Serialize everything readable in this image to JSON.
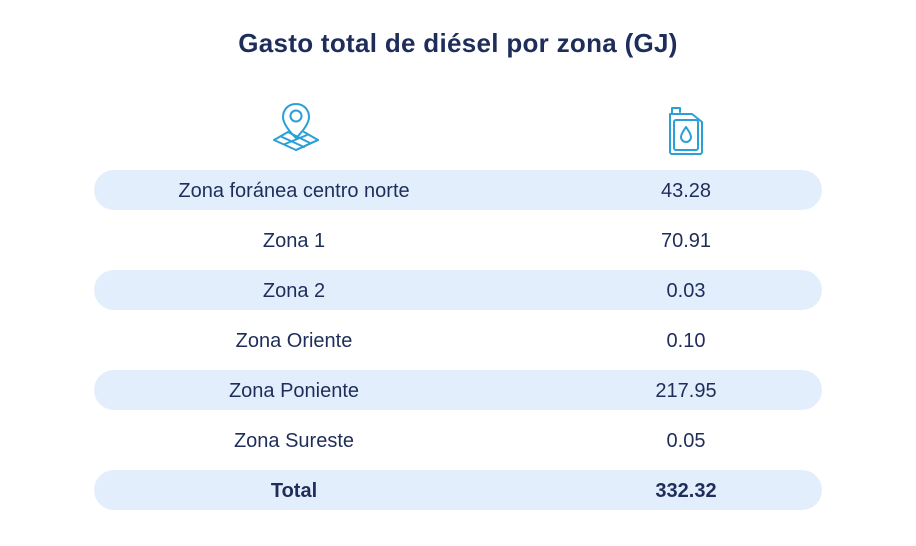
{
  "title": "Gasto total de diésel por zona (GJ)",
  "icons": {
    "zone_column": "location-map-icon",
    "value_column": "fuel-canister-icon"
  },
  "colors": {
    "text": "#1e2d5a",
    "row_shade": "#e3eefc",
    "icon": "#2a9fd8"
  },
  "chart_data": {
    "type": "table",
    "title": "Gasto total de diésel por zona (GJ)",
    "columns": [
      "Zona",
      "Gasto (GJ)"
    ],
    "rows": [
      {
        "zone": "Zona foránea centro norte",
        "value": "43.28"
      },
      {
        "zone": "Zona 1",
        "value": "70.91"
      },
      {
        "zone": "Zona 2",
        "value": "0.03"
      },
      {
        "zone": "Zona Oriente",
        "value": "0.10"
      },
      {
        "zone": "Zona Poniente",
        "value": "217.95"
      },
      {
        "zone": "Zona Sureste",
        "value": "0.05"
      }
    ],
    "total": {
      "label": "Total",
      "value": "332.32"
    }
  }
}
